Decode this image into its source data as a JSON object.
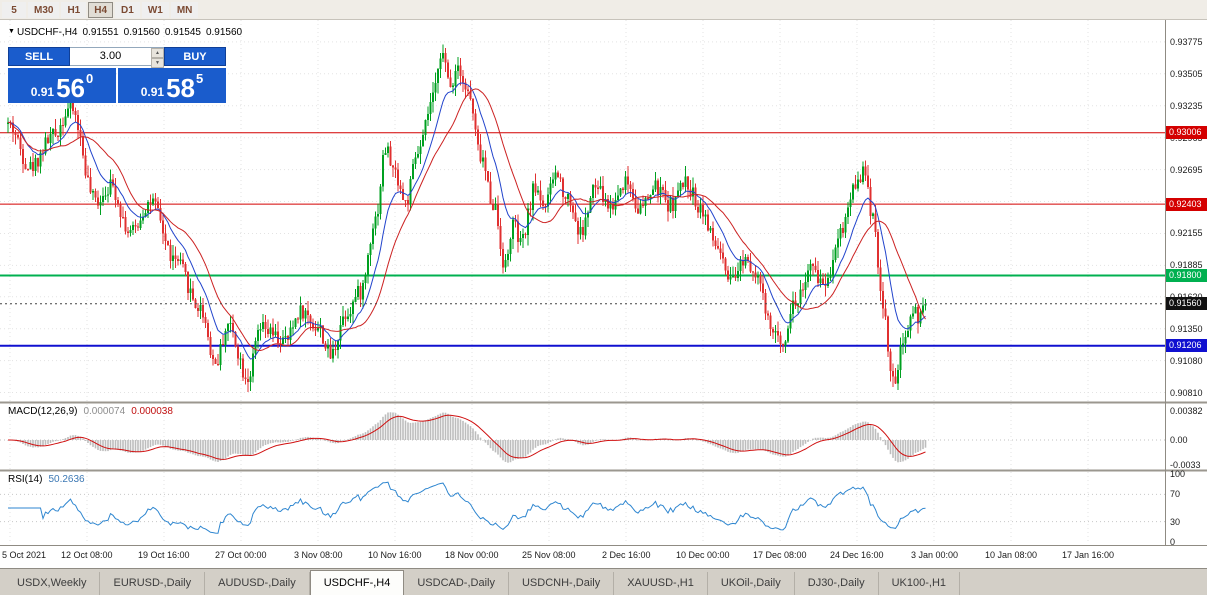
{
  "toolbar": {
    "periods": [
      {
        "label": "5",
        "active": false
      },
      {
        "label": "M30",
        "active": false
      },
      {
        "label": "H1",
        "active": false
      },
      {
        "label": "H4",
        "active": true
      },
      {
        "label": "D1",
        "active": false
      },
      {
        "label": "W1",
        "active": false
      },
      {
        "label": "MN",
        "active": false
      }
    ]
  },
  "ohlc_line": {
    "marker": "▼",
    "symbol": "USDCHF-,H4",
    "open": "0.91551",
    "high": "0.91560",
    "low": "0.91545",
    "close": "0.91560"
  },
  "trade_panel": {
    "sell_label": "SELL",
    "buy_label": "BUY",
    "lots": "3.00",
    "sell_price": {
      "prefix": "0.91",
      "big": "56",
      "sup": "0"
    },
    "buy_price": {
      "prefix": "0.91",
      "big": "58",
      "sup": "5"
    },
    "panel_color": "#1a5ccc"
  },
  "price_scale_labels": [
    "0.93775",
    "0.93505",
    "0.93235",
    "0.92965",
    "0.92695",
    "0.92425",
    "0.92155",
    "0.91885",
    "0.91620",
    "0.91350",
    "0.91080",
    "0.90810"
  ],
  "levels": [
    {
      "price": 0.93006,
      "label": "0.93006",
      "color": "#d40000",
      "width": 1
    },
    {
      "price": 0.92403,
      "label": "0.92403",
      "color": "#d40000",
      "width": 1
    },
    {
      "price": 0.918,
      "label": "0.91800",
      "color": "#00b050",
      "width": 2
    },
    {
      "price": 0.91206,
      "label": "0.91206",
      "color": "#1010d0",
      "width": 2
    }
  ],
  "current_price": {
    "price": 0.9156,
    "label": "0.91560",
    "badge": "#111111"
  },
  "time_axis": [
    "5 Oct 2021",
    "12 Oct 08:00",
    "19 Oct 16:00",
    "27 Oct 00:00",
    "3 Nov 08:00",
    "10 Nov 16:00",
    "18 Nov 00:00",
    "25 Nov 08:00",
    "2 Dec 16:00",
    "10 Dec 00:00",
    "17 Dec 08:00",
    "24 Dec 16:00",
    "3 Jan 00:00",
    "10 Jan 08:00",
    "17 Jan 16:00"
  ],
  "macd_panel": {
    "title": "MACD(12,26,9)",
    "value_main": "0.000074",
    "value_signal": "0.000038",
    "scale_labels": [
      {
        "v": 0.00382,
        "label": "0.00382"
      },
      {
        "v": 0,
        "label": "0.00"
      },
      {
        "v": -0.0033,
        "label": "-0.0033"
      }
    ]
  },
  "rsi_panel": {
    "title": "RSI(14)",
    "value": "50.2636",
    "scale_labels": [
      {
        "v": 100,
        "label": "100"
      },
      {
        "v": 70,
        "label": "70"
      },
      {
        "v": 30,
        "label": "30"
      },
      {
        "v": 0,
        "label": "0"
      }
    ],
    "levels": [
      70,
      30
    ]
  },
  "tabs": [
    {
      "label": "USDX,Weekly",
      "active": false
    },
    {
      "label": "EURUSD-,Daily",
      "active": false
    },
    {
      "label": "AUDUSD-,Daily",
      "active": false
    },
    {
      "label": "USDCHF-,H4",
      "active": true
    },
    {
      "label": "USDCAD-,Daily",
      "active": false
    },
    {
      "label": "USDCNH-,Daily",
      "active": false
    },
    {
      "label": "XAUUSD-,H1",
      "active": false
    },
    {
      "label": "UKOil-,Daily",
      "active": false
    },
    {
      "label": "DJ30-,Daily",
      "active": false
    },
    {
      "label": "UK100-,H1",
      "active": false
    }
  ],
  "chart_data": {
    "type": "candlestick",
    "symbol": "USDCHF-",
    "timeframe": "H4",
    "title": "USDCHF-,H4",
    "ylim": [
      0.9073,
      0.9396
    ],
    "bars": 368,
    "last_close": 0.9156,
    "seed": 42,
    "noise": {
      "close": 0.0014,
      "wick": 0.0009
    },
    "price_path_anchors": [
      [
        0,
        0.9308
      ],
      [
        9,
        0.9272
      ],
      [
        18,
        0.9298
      ],
      [
        25,
        0.9322
      ],
      [
        35,
        0.9243
      ],
      [
        41,
        0.9256
      ],
      [
        49,
        0.9216
      ],
      [
        57,
        0.9242
      ],
      [
        67,
        0.9192
      ],
      [
        77,
        0.9152
      ],
      [
        83,
        0.9106
      ],
      [
        88,
        0.9138
      ],
      [
        96,
        0.9094
      ],
      [
        101,
        0.9134
      ],
      [
        111,
        0.9124
      ],
      [
        117,
        0.915
      ],
      [
        124,
        0.9136
      ],
      [
        129,
        0.9112
      ],
      [
        135,
        0.9148
      ],
      [
        141,
        0.9166
      ],
      [
        147,
        0.9228
      ],
      [
        151,
        0.9287
      ],
      [
        155,
        0.9266
      ],
      [
        159,
        0.9241
      ],
      [
        164,
        0.9283
      ],
      [
        170,
        0.9328
      ],
      [
        173,
        0.937
      ],
      [
        177,
        0.9341
      ],
      [
        180,
        0.9359
      ],
      [
        184,
        0.9334
      ],
      [
        189,
        0.9281
      ],
      [
        194,
        0.9242
      ],
      [
        199,
        0.9188
      ],
      [
        202,
        0.9224
      ],
      [
        205,
        0.9206
      ],
      [
        211,
        0.9254
      ],
      [
        215,
        0.9239
      ],
      [
        219,
        0.9266
      ],
      [
        224,
        0.9246
      ],
      [
        229,
        0.9216
      ],
      [
        235,
        0.9254
      ],
      [
        241,
        0.9238
      ],
      [
        247,
        0.926
      ],
      [
        253,
        0.9236
      ],
      [
        259,
        0.9254
      ],
      [
        265,
        0.924
      ],
      [
        271,
        0.9258
      ],
      [
        277,
        0.9238
      ],
      [
        283,
        0.9206
      ],
      [
        289,
        0.9172
      ],
      [
        295,
        0.9196
      ],
      [
        299,
        0.9184
      ],
      [
        305,
        0.9136
      ],
      [
        309,
        0.9122
      ],
      [
        315,
        0.9158
      ],
      [
        321,
        0.9184
      ],
      [
        327,
        0.9174
      ],
      [
        333,
        0.9218
      ],
      [
        339,
        0.9258
      ],
      [
        342,
        0.9268
      ],
      [
        346,
        0.9232
      ],
      [
        350,
        0.9152
      ],
      [
        354,
        0.9088
      ],
      [
        358,
        0.9118
      ],
      [
        362,
        0.9152
      ],
      [
        365,
        0.9142
      ],
      [
        367,
        0.9156
      ]
    ],
    "overlays": {
      "ma_fast": {
        "type": "EMA",
        "period": 12,
        "color": "#2244cc"
      },
      "ma_slow": {
        "type": "SMA",
        "period": 22,
        "color": "#cc2222"
      }
    },
    "indicators": {
      "macd": {
        "fast": 12,
        "slow": 26,
        "signal": 9,
        "hist_color": "#bdbdbd",
        "signal_color": "#d01010"
      },
      "rsi": {
        "period": 14,
        "color": "#2e86d0"
      }
    },
    "colors": {
      "up": "#00a020",
      "down": "#e03030",
      "background": "#ffffff",
      "grid": "#e3e3e3"
    }
  }
}
